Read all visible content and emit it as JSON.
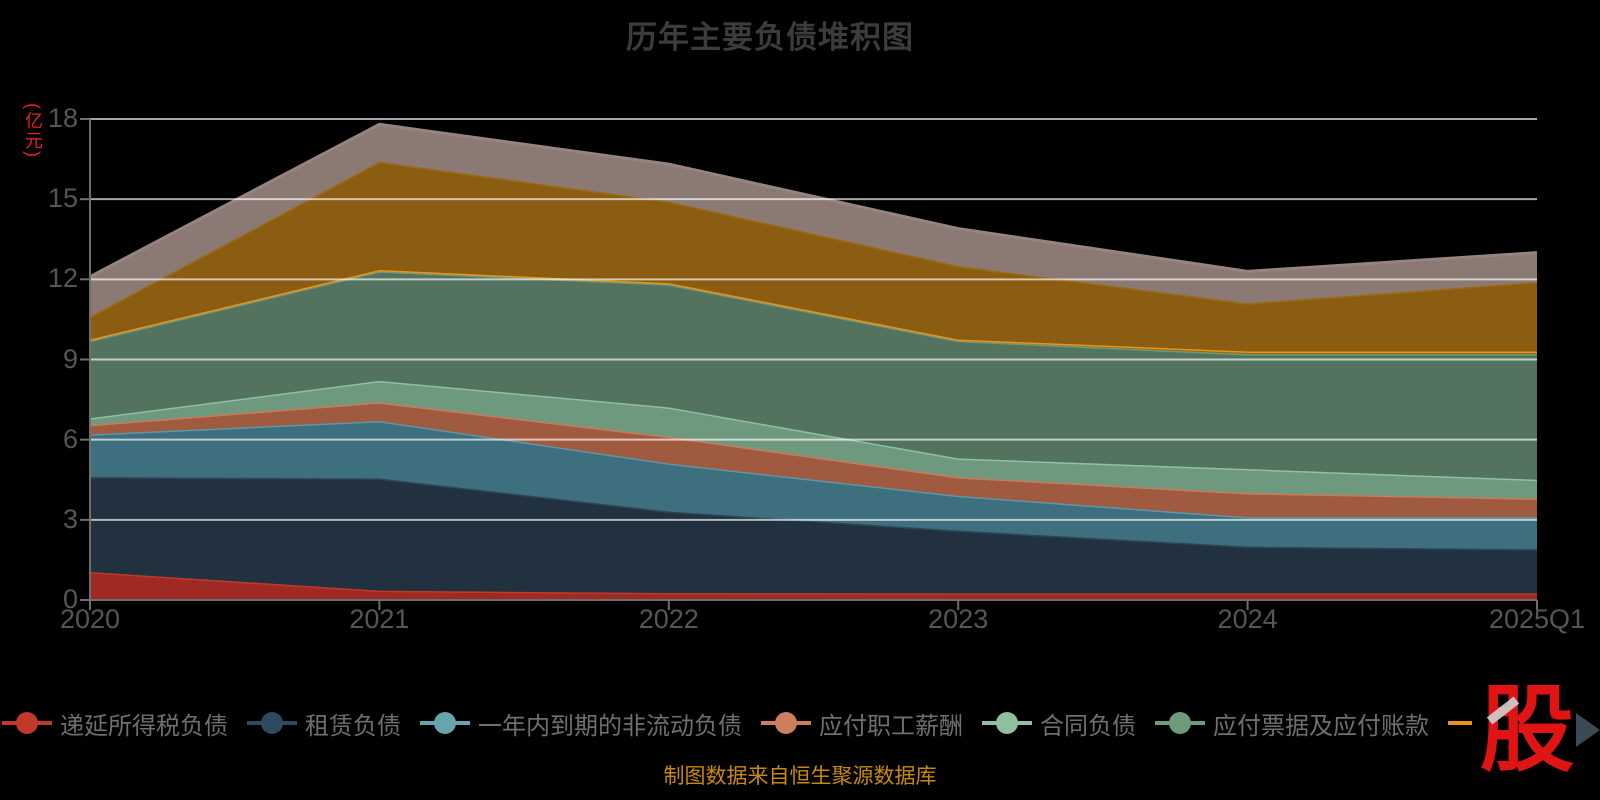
{
  "title": "历年主要负债堆积图",
  "y_axis": {
    "name": "(亿元)",
    "ticks": [
      0,
      3,
      6,
      9,
      12,
      15,
      18
    ],
    "max": 18
  },
  "x_axis": {
    "categories": [
      "2020",
      "2021",
      "2022",
      "2023",
      "2024",
      "2025Q1"
    ]
  },
  "legend": [
    {
      "label": "递延所得税负债",
      "color": "#c0392b",
      "partial": false
    },
    {
      "label": "租赁负债",
      "color": "#2e4a5c",
      "partial": false
    },
    {
      "label": "一年内到期的非流动负债",
      "color": "#68a4ad",
      "partial": false
    },
    {
      "label": "应付职工薪酬",
      "color": "#cc7f5c",
      "partial": false
    },
    {
      "label": "合同负债",
      "color": "#8fc0a2",
      "partial": false
    },
    {
      "label": "应付票据及应付账款",
      "color": "#6f9b7d",
      "partial": false
    },
    {
      "label": "",
      "color": "#e8941a",
      "partial": true
    }
  ],
  "chart_data": {
    "type": "area",
    "stacked": true,
    "title": "历年主要负债堆积图",
    "ylabel": "(亿元)",
    "ylim": [
      0,
      18
    ],
    "grid": true,
    "legend_position": "bottom",
    "x": [
      "2020",
      "2021",
      "2022",
      "2023",
      "2024",
      "2025Q1"
    ],
    "series": [
      {
        "name": "递延所得税负债",
        "fill": "#9e2a23",
        "line": "#bf3a2b",
        "values": [
          1.05,
          0.35,
          0.26,
          0.25,
          0.25,
          0.25
        ]
      },
      {
        "name": "租赁负债",
        "fill": "#22313f",
        "line": "#2e4556",
        "values": [
          3.55,
          4.2,
          3.05,
          2.35,
          1.75,
          1.65
        ]
      },
      {
        "name": "一年内到期的非流动负债",
        "fill": "#3e6f7e",
        "line": "#5d97a5",
        "values": [
          1.6,
          2.15,
          1.8,
          1.3,
          1.1,
          1.2
        ]
      },
      {
        "name": "应付职工薪酬",
        "fill": "#a05a40",
        "line": "#c97a58",
        "values": [
          0.35,
          0.7,
          1.0,
          0.7,
          0.9,
          0.7
        ]
      },
      {
        "name": "合同负债",
        "fill": "#6f997f",
        "line": "#8fc0a2",
        "values": [
          0.25,
          0.8,
          1.1,
          0.7,
          0.9,
          0.7
        ]
      },
      {
        "name": "应付票据及应付账款",
        "fill": "#53735f",
        "line": "#6d997b",
        "values": [
          2.9,
          4.1,
          4.6,
          4.4,
          4.3,
          4.7
        ]
      },
      {
        "name": "unlabeled-orange",
        "fill": "#9a6410",
        "line": "#e8941a",
        "values": [
          0.05,
          0.05,
          0.05,
          0.05,
          0.1,
          0.1
        ]
      },
      {
        "name": "unlabeled-gold",
        "fill": "#8a5d13",
        "line": "#9c690f",
        "values": [
          0.85,
          4.05,
          3.05,
          2.75,
          1.8,
          2.6
        ]
      },
      {
        "name": "unlabeled-gray",
        "fill": "#8b7973",
        "line": "#968480",
        "values": [
          1.5,
          1.4,
          1.4,
          1.4,
          1.2,
          1.1
        ]
      }
    ]
  },
  "source_note": "制图数据来自恒生聚源数据库",
  "logo": {
    "text": "股"
  }
}
